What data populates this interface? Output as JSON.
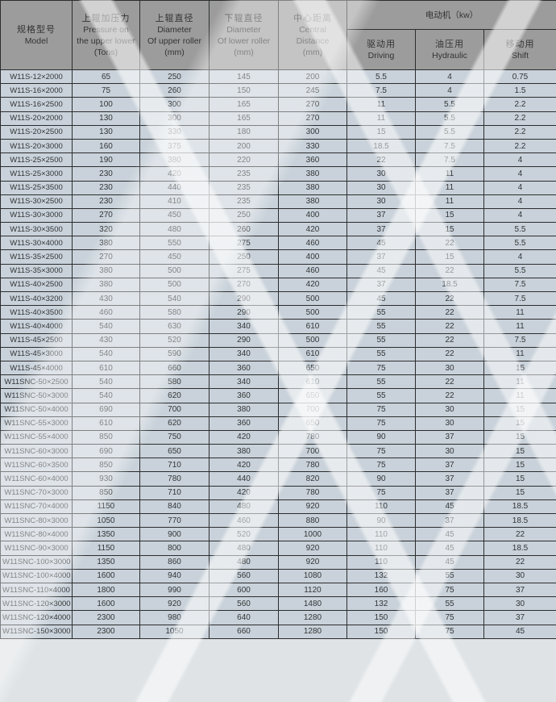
{
  "table": {
    "headers": {
      "model": [
        "规格型号",
        "Model"
      ],
      "pressure": [
        "上辊加压力",
        "Pressure on",
        "the upper lower",
        "(Tons)"
      ],
      "upper": [
        "上辊直径",
        "Diameter",
        "Of upper roller",
        "(mm)"
      ],
      "lower": [
        "下辊直径",
        "Diameter",
        "Of lower roller",
        "(mm)"
      ],
      "central": [
        "中心距离",
        "Central",
        "Distance",
        "(mm)"
      ],
      "motor_group": "电动机（kw）",
      "driving": [
        "驱动用",
        "Driving"
      ],
      "hydraulic": [
        "油压用",
        "Hydraulic"
      ],
      "shift": [
        "移动用",
        "Shift"
      ]
    },
    "rows": [
      [
        "W11S-12×2000",
        "65",
        "250",
        "145",
        "200",
        "5.5",
        "4",
        "0.75"
      ],
      [
        "W11S-16×2000",
        "75",
        "260",
        "150",
        "245",
        "7.5",
        "4",
        "1.5"
      ],
      [
        "W11S-16×2500",
        "100",
        "300",
        "165",
        "270",
        "11",
        "5.5",
        "2.2"
      ],
      [
        "W11S-20×2000",
        "130",
        "300",
        "165",
        "270",
        "11",
        "5.5",
        "2.2"
      ],
      [
        "W11S-20×2500",
        "130",
        "330",
        "180",
        "300",
        "15",
        "5.5",
        "2.2"
      ],
      [
        "W11S-20×3000",
        "160",
        "375",
        "200",
        "330",
        "18.5",
        "7.5",
        "2.2"
      ],
      [
        "W11S-25×2500",
        "190",
        "380",
        "220",
        "360",
        "22",
        "7.5",
        "4"
      ],
      [
        "W11S-25×3000",
        "230",
        "420",
        "235",
        "380",
        "30",
        "11",
        "4"
      ],
      [
        "W11S-25×3500",
        "230",
        "440",
        "235",
        "380",
        "30",
        "11",
        "4"
      ],
      [
        "W11S-30×2500",
        "230",
        "410",
        "235",
        "380",
        "30",
        "11",
        "4"
      ],
      [
        "W11S-30×3000",
        "270",
        "450",
        "250",
        "400",
        "37",
        "15",
        "4"
      ],
      [
        "W11S-30×3500",
        "320",
        "480",
        "260",
        "420",
        "37",
        "15",
        "5.5"
      ],
      [
        "W11S-30×4000",
        "380",
        "550",
        "275",
        "460",
        "45",
        "22",
        "5.5"
      ],
      [
        "W11S-35×2500",
        "270",
        "450",
        "250",
        "400",
        "37",
        "15",
        "4"
      ],
      [
        "W11S-35×3000",
        "380",
        "500",
        "275",
        "460",
        "45",
        "22",
        "5.5"
      ],
      [
        "W11S-40×2500",
        "380",
        "500",
        "270",
        "420",
        "37",
        "18.5",
        "7.5"
      ],
      [
        "W11S-40×3200",
        "430",
        "540",
        "290",
        "500",
        "45",
        "22",
        "7.5"
      ],
      [
        "W11S-40×3500",
        "460",
        "580",
        "290",
        "500",
        "55",
        "22",
        "11"
      ],
      [
        "W11S-40×4000",
        "540",
        "630",
        "340",
        "610",
        "55",
        "22",
        "11"
      ],
      [
        "W11S-45×2500",
        "430",
        "520",
        "290",
        "500",
        "55",
        "22",
        "7.5"
      ],
      [
        "W11S-45×3000",
        "540",
        "590",
        "340",
        "610",
        "55",
        "22",
        "11"
      ],
      [
        "W11S-45×4000",
        "610",
        "660",
        "360",
        "650",
        "75",
        "30",
        "15"
      ],
      [
        "W11SNC-50×2500",
        "540",
        "580",
        "340",
        "610",
        "55",
        "22",
        "11"
      ],
      [
        "W11SNC-50×3000",
        "540",
        "620",
        "360",
        "650",
        "55",
        "22",
        "11"
      ],
      [
        "W11SNC-50×4000",
        "690",
        "700",
        "380",
        "700",
        "75",
        "30",
        "15"
      ],
      [
        "W11SNC-55×3000",
        "610",
        "620",
        "360",
        "650",
        "75",
        "30",
        "15"
      ],
      [
        "W11SNC-55×4000",
        "850",
        "750",
        "420",
        "780",
        "90",
        "37",
        "15"
      ],
      [
        "W11SNC-60×3000",
        "690",
        "650",
        "380",
        "700",
        "75",
        "30",
        "15"
      ],
      [
        "W11SNC-60×3500",
        "850",
        "710",
        "420",
        "780",
        "75",
        "37",
        "15"
      ],
      [
        "W11SNC-60×4000",
        "930",
        "780",
        "440",
        "820",
        "90",
        "37",
        "15"
      ],
      [
        "W11SNC-70×3000",
        "850",
        "710",
        "420",
        "780",
        "75",
        "37",
        "15"
      ],
      [
        "W11SNC-70×4000",
        "1150",
        "840",
        "480",
        "920",
        "110",
        "45",
        "18.5"
      ],
      [
        "W11SNC-80×3000",
        "1050",
        "770",
        "460",
        "880",
        "90",
        "37",
        "18.5"
      ],
      [
        "W11SNC-80×4000",
        "1350",
        "900",
        "520",
        "1000",
        "110",
        "45",
        "22"
      ],
      [
        "W11SNC-90×3000",
        "1150",
        "800",
        "480",
        "920",
        "110",
        "45",
        "18.5"
      ],
      [
        "W11SNC-100×3000",
        "1350",
        "860",
        "480",
        "920",
        "110",
        "45",
        "22"
      ],
      [
        "W11SNC-100×4000",
        "1600",
        "940",
        "560",
        "1080",
        "132",
        "55",
        "30"
      ],
      [
        "W11SNC-110×4000",
        "1800",
        "990",
        "600",
        "1120",
        "160",
        "75",
        "37"
      ],
      [
        "W11SNC-120×3000",
        "1600",
        "920",
        "560",
        "1480",
        "132",
        "55",
        "30"
      ],
      [
        "W11SNC-120×4000",
        "2300",
        "980",
        "640",
        "1280",
        "150",
        "75",
        "37"
      ],
      [
        "W11SNC-150×3000",
        "2300",
        "1050",
        "660",
        "1280",
        "150",
        "75",
        "45"
      ]
    ]
  }
}
